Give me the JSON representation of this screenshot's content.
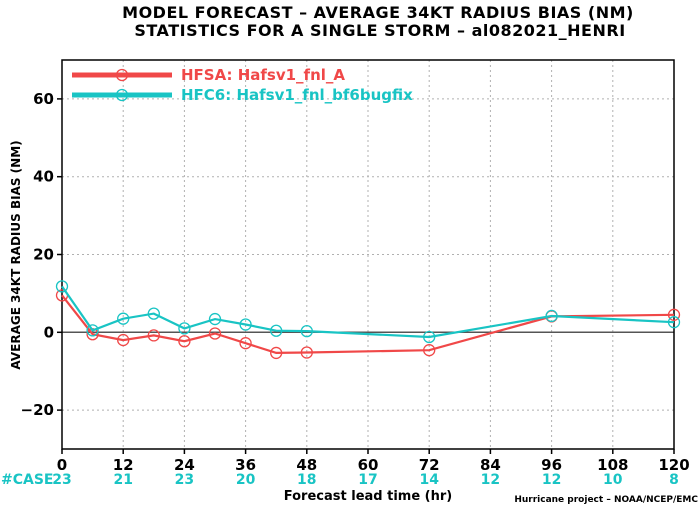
{
  "chart_data": {
    "type": "line",
    "title": "MODEL FORECAST – AVERAGE 34KT RADIUS BIAS (NM)",
    "subtitle": "STATISTICS FOR A SINGLE STORM – al082021_HENRI",
    "xlabel": "Forecast lead time (hr)",
    "ylabel": "AVERAGE 34KT RADIUS BIAS (NM)",
    "xlim": [
      0,
      120
    ],
    "ylim": [
      -30,
      70
    ],
    "xticks": [
      0,
      12,
      24,
      36,
      48,
      60,
      72,
      84,
      96,
      108,
      120
    ],
    "yticks": [
      -20,
      0,
      20,
      40,
      60
    ],
    "grid": true,
    "legend_position": "top-left",
    "series": [
      {
        "name": "HFSA: Hafsv1_fnl_A",
        "color": "#f04848",
        "x": [
          0,
          6,
          12,
          18,
          24,
          30,
          36,
          42,
          48,
          72,
          96,
          120
        ],
        "y": [
          9.5,
          -0.5,
          -2,
          -0.8,
          -2.3,
          -0.3,
          -2.8,
          -5.3,
          -5.2,
          -4.6,
          4.1,
          4.5
        ]
      },
      {
        "name": "HFC6: Hafsv1_fnl_bf6bugfix",
        "color": "#19c4c4",
        "x": [
          0,
          6,
          12,
          18,
          24,
          30,
          36,
          42,
          48,
          72,
          96,
          120
        ],
        "y": [
          11.8,
          0.5,
          3.5,
          4.8,
          1.0,
          3.4,
          2.0,
          0.4,
          0.3,
          -1.2,
          4.2,
          2.6
        ]
      }
    ],
    "case_label": "#CASE",
    "case_counts": [
      {
        "x": 0,
        "n": "23"
      },
      {
        "x": 12,
        "n": "21"
      },
      {
        "x": 24,
        "n": "23"
      },
      {
        "x": 36,
        "n": "20"
      },
      {
        "x": 48,
        "n": "18"
      },
      {
        "x": 60,
        "n": "17"
      },
      {
        "x": 72,
        "n": "14"
      },
      {
        "x": 84,
        "n": "12"
      },
      {
        "x": 96,
        "n": "12"
      },
      {
        "x": 108,
        "n": "10"
      },
      {
        "x": 120,
        "n": "8"
      }
    ],
    "credit": "Hurricane project – NOAA/NCEP/EMC",
    "zero_line_color": "#555555"
  }
}
